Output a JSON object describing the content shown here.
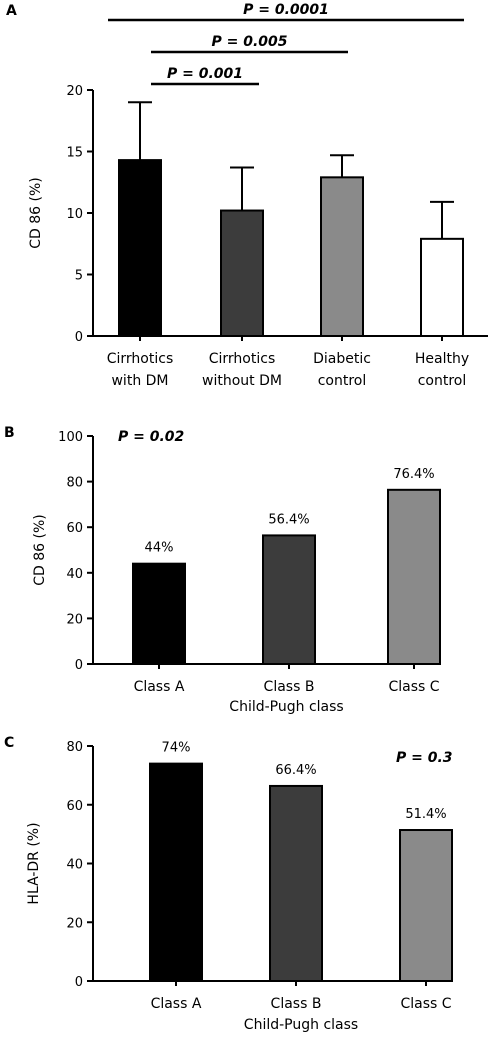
{
  "chart_data": [
    {
      "panel": "A",
      "type": "bar",
      "ylabel": "CD 86 (%)",
      "ylim": [
        0,
        20
      ],
      "yticks": [
        0,
        5,
        10,
        15,
        20
      ],
      "categories": [
        [
          "Cirrhotics",
          "with DM"
        ],
        [
          "Cirrhotics",
          "without DM"
        ],
        [
          "Diabetic",
          "control"
        ],
        [
          "Healthy",
          "control"
        ]
      ],
      "values": [
        14.3,
        10.2,
        12.9,
        7.9
      ],
      "error_upper": [
        19.0,
        13.7,
        14.7,
        10.9
      ],
      "colors": [
        "#000000",
        "#3c3c3c",
        "#8a8a8a",
        "#ffffff"
      ],
      "brackets": [
        {
          "text": "P = 0.0001",
          "from": 0,
          "to": 3
        },
        {
          "text": "P = 0.005",
          "from": 0,
          "to": 2
        },
        {
          "text": "P = 0.001",
          "from": 0,
          "to": 1
        }
      ]
    },
    {
      "panel": "B",
      "type": "bar",
      "ylabel": "CD 86 (%)",
      "xlabel": "Child-Pugh class",
      "ylim": [
        0,
        100
      ],
      "yticks": [
        0,
        20,
        40,
        60,
        80,
        100
      ],
      "categories": [
        "Class A",
        "Class B",
        "Class C"
      ],
      "values": [
        44,
        56.4,
        76.4
      ],
      "data_labels": [
        "44%",
        "56.4%",
        "76.4%"
      ],
      "colors": [
        "#000000",
        "#3c3c3c",
        "#8a8a8a"
      ],
      "annotation": "P = 0.02"
    },
    {
      "panel": "C",
      "type": "bar",
      "ylabel": "HLA-DR (%)",
      "xlabel": "Child-Pugh class",
      "ylim": [
        0,
        80
      ],
      "yticks": [
        0,
        20,
        40,
        60,
        80
      ],
      "categories": [
        "Class A",
        "Class B",
        "Class C"
      ],
      "values": [
        74,
        66.4,
        51.4
      ],
      "data_labels": [
        "74%",
        "66.4%",
        "51.4%"
      ],
      "colors": [
        "#000000",
        "#3c3c3c",
        "#8a8a8a"
      ],
      "annotation": "P = 0.3"
    }
  ]
}
